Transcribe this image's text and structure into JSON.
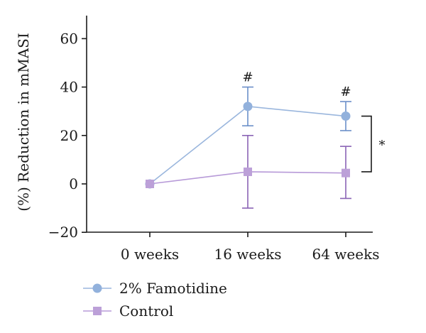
{
  "chart_data": {
    "type": "line",
    "title": "",
    "xlabel": "",
    "ylabel": "(%) Reduction in mMASI",
    "categories": [
      "0 weeks",
      "16 weeks",
      "64 weeks"
    ],
    "ylim": [
      -20,
      70
    ],
    "yticks": [
      -20,
      0,
      20,
      40,
      60
    ],
    "ytick_labels": [
      "−20",
      "0",
      "20",
      "40",
      "60"
    ],
    "grid": false,
    "legend_position": "bottom-left",
    "series": [
      {
        "name": "2% Famotidine",
        "marker": "circle",
        "color": "#6b8fc9",
        "line_color": "#9ab6dd",
        "marker_color": "#92b1dc",
        "values": [
          0,
          32,
          28
        ],
        "err_low": [
          null,
          24,
          22
        ],
        "err_high": [
          null,
          40,
          34
        ],
        "point_annotations": [
          "",
          "#",
          "#"
        ]
      },
      {
        "name": "Control",
        "marker": "square",
        "color": "#8a63b5",
        "line_color": "#b79ad8",
        "marker_color": "#bca0d8",
        "values": [
          0,
          5,
          4.5
        ],
        "err_low": [
          null,
          -10,
          -6
        ],
        "err_high": [
          null,
          20,
          15.5
        ],
        "point_annotations": [
          "",
          "",
          ""
        ]
      }
    ],
    "significance": {
      "label": "*",
      "category_index": 2,
      "y_from": 28,
      "y_to": 5
    }
  }
}
